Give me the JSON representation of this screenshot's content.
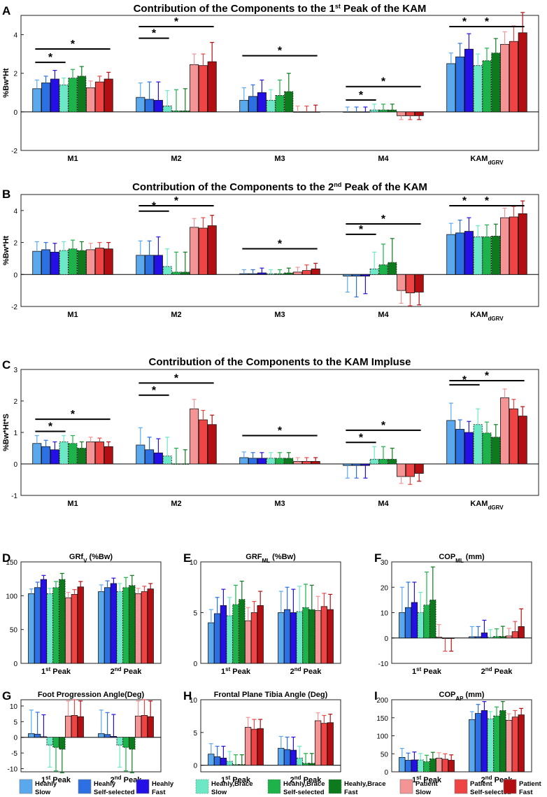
{
  "groups": [
    {
      "name": "Heahly Slow",
      "line1": "Heahly",
      "line2": "Slow",
      "color": "#5aa9ef",
      "dashed": false
    },
    {
      "name": "Heahly Self-selected",
      "line1": "Heahly",
      "line2": "Self-selected",
      "color": "#2c70e3",
      "dashed": false
    },
    {
      "name": "Heahly Fast",
      "line1": "Heahly",
      "line2": "Fast",
      "color": "#2410e6",
      "dashed": false
    },
    {
      "name": "Heahly,Brace Slow",
      "line1": "Heahly,Brace",
      "line2": "Slow",
      "color": "#6ce8c6",
      "dashed": true
    },
    {
      "name": "Heahly,Brace Self-selected",
      "line1": "Heahly,Brace",
      "line2": "Self-selected",
      "color": "#1db34a",
      "dashed": true
    },
    {
      "name": "Heahly,Brace Fast",
      "line1": "Heahly,Brace",
      "line2": "Fast",
      "color": "#0e7a1e",
      "dashed": true
    },
    {
      "name": "Patient Slow",
      "line1": "Patient",
      "line2": "Slow",
      "color": "#f49494",
      "dashed": false
    },
    {
      "name": "Patient Self-selected",
      "line1": "Patient",
      "line2": "Self-selected",
      "color": "#ee4444",
      "dashed": false
    },
    {
      "name": "Patient Fast",
      "line1": "Patient",
      "line2": "Fast",
      "color": "#b30f12",
      "dashed": false
    }
  ],
  "chart_data": [
    {
      "label": "A",
      "type": "bar",
      "title_pre": "Contribution of the Components to the 1",
      "title_sup": "st",
      "title_post": " Peak of the KAM",
      "ylabel": "%Bw*Ht",
      "ylim": [
        -2,
        5
      ],
      "yticks": [
        -2,
        0,
        2,
        4
      ],
      "categories": [
        "M1",
        "M2",
        "M3",
        "M4",
        "KAM"
      ],
      "cat_sub": [
        "",
        "",
        "",
        "",
        "dGRV"
      ],
      "values": [
        [
          1.2,
          1.5,
          1.7,
          1.4,
          1.75,
          1.85,
          1.25,
          1.55,
          1.7
        ],
        [
          0.75,
          0.65,
          0.6,
          0.3,
          0.05,
          0.05,
          2.45,
          2.4,
          2.6
        ],
        [
          0.6,
          0.8,
          1.0,
          0.6,
          0.85,
          1.05,
          0.0,
          0.0,
          0.0
        ],
        [
          0.0,
          0.0,
          0.0,
          0.1,
          0.1,
          0.1,
          -0.2,
          -0.2,
          -0.2
        ],
        [
          2.5,
          2.85,
          3.25,
          2.4,
          2.65,
          3.05,
          3.5,
          3.65,
          4.1
        ]
      ],
      "errors": [
        [
          0.45,
          0.35,
          0.45,
          0.35,
          0.45,
          0.5,
          0.35,
          0.3,
          0.35
        ],
        [
          0.75,
          0.9,
          0.95,
          0.8,
          1.1,
          1.15,
          0.55,
          0.6,
          1.0
        ],
        [
          0.65,
          0.6,
          0.65,
          0.55,
          0.8,
          0.95,
          0.3,
          0.3,
          0.35
        ],
        [
          0.25,
          0.25,
          0.25,
          0.3,
          0.3,
          0.3,
          0.2,
          0.2,
          0.2
        ],
        [
          0.55,
          0.7,
          0.8,
          0.6,
          0.65,
          0.75,
          0.65,
          0.8,
          1.05
        ]
      ],
      "sig": [
        {
          "cat": 0,
          "from": 0,
          "to": 3,
          "level": 1
        },
        {
          "cat": 0,
          "from": 0,
          "to": 8,
          "level": 2
        },
        {
          "cat": 1,
          "from": 0,
          "to": 3,
          "level": 1
        },
        {
          "cat": 1,
          "from": 0,
          "to": 8,
          "level": 2
        },
        {
          "cat": 2,
          "from": 0,
          "to": 8,
          "level": 2
        },
        {
          "cat": 3,
          "from": 0,
          "to": 3,
          "level": 1
        },
        {
          "cat": 3,
          "from": 0,
          "to": 8,
          "level": 2
        },
        {
          "cat": 4,
          "from": 0,
          "to": 3,
          "level": 1
        },
        {
          "cat": 4,
          "from": 0,
          "to": 8,
          "level": 2
        }
      ],
      "star": "*"
    },
    {
      "label": "B",
      "type": "bar",
      "title_pre": "Contribution of the Components to the 2",
      "title_sup": "nd",
      "title_post": " Peak of the KAM",
      "ylabel": "%Bw*Ht",
      "ylim": [
        -2,
        5
      ],
      "yticks": [
        -2,
        0,
        2,
        4
      ],
      "categories": [
        "M1",
        "M2",
        "M3",
        "M4",
        "KAM"
      ],
      "cat_sub": [
        "",
        "",
        "",
        "",
        "dGRV"
      ],
      "values": [
        [
          1.45,
          1.55,
          1.4,
          1.5,
          1.6,
          1.5,
          1.55,
          1.65,
          1.6
        ],
        [
          1.2,
          1.2,
          1.2,
          0.5,
          0.15,
          0.15,
          2.95,
          2.9,
          3.05
        ],
        [
          0.05,
          0.05,
          0.1,
          0.05,
          0.05,
          0.1,
          0.15,
          0.25,
          0.35
        ],
        [
          -0.1,
          -0.1,
          -0.1,
          0.35,
          0.6,
          0.75,
          -1.0,
          -1.15,
          -1.1
        ],
        [
          2.5,
          2.6,
          2.7,
          2.35,
          2.35,
          2.4,
          3.55,
          3.6,
          3.8
        ]
      ],
      "errors": [
        [
          0.6,
          0.45,
          0.55,
          0.55,
          0.55,
          0.55,
          0.4,
          0.35,
          0.4
        ],
        [
          0.9,
          0.9,
          1.15,
          1.1,
          1.25,
          1.25,
          0.55,
          0.65,
          0.65
        ],
        [
          0.25,
          0.25,
          0.3,
          0.25,
          0.25,
          0.3,
          0.3,
          0.35,
          0.35
        ],
        [
          1.0,
          1.3,
          1.1,
          1.05,
          1.3,
          1.5,
          0.8,
          0.8,
          0.8
        ],
        [
          0.7,
          0.8,
          0.85,
          0.7,
          0.75,
          0.75,
          0.6,
          0.65,
          0.8
        ]
      ],
      "sig": [
        {
          "cat": 1,
          "from": 0,
          "to": 3,
          "level": 1
        },
        {
          "cat": 1,
          "from": 0,
          "to": 8,
          "level": 2
        },
        {
          "cat": 2,
          "from": 0,
          "to": 8,
          "level": 2
        },
        {
          "cat": 3,
          "from": 0,
          "to": 3,
          "level": 1
        },
        {
          "cat": 3,
          "from": 0,
          "to": 8,
          "level": 2
        },
        {
          "cat": 4,
          "from": 0,
          "to": 3,
          "level": 1
        },
        {
          "cat": 4,
          "from": 0,
          "to": 8,
          "level": 2
        }
      ],
      "star": "*"
    },
    {
      "label": "C",
      "type": "bar",
      "title_pre": "Contribution of the Components to the KAM Impluse",
      "title_sup": "",
      "title_post": "",
      "ylabel": "%Bw*Ht*S",
      "ylim": [
        -1,
        3
      ],
      "yticks": [
        -1,
        0,
        1,
        2,
        3
      ],
      "categories": [
        "M1",
        "M2",
        "M3",
        "M4",
        "KAM"
      ],
      "cat_sub": [
        "",
        "",
        "",
        "",
        "dGRV"
      ],
      "values": [
        [
          0.65,
          0.55,
          0.45,
          0.7,
          0.65,
          0.5,
          0.7,
          0.7,
          0.55
        ],
        [
          0.6,
          0.45,
          0.35,
          0.25,
          0.0,
          0.0,
          1.75,
          1.4,
          1.25
        ],
        [
          0.2,
          0.18,
          0.18,
          0.18,
          0.18,
          0.18,
          0.08,
          0.08,
          0.08
        ],
        [
          -0.05,
          -0.05,
          -0.05,
          0.15,
          0.15,
          0.15,
          -0.4,
          -0.4,
          -0.3
        ],
        [
          1.38,
          1.1,
          1.0,
          1.25,
          0.98,
          0.85,
          2.1,
          1.75,
          1.52
        ]
      ],
      "errors": [
        [
          0.25,
          0.2,
          0.25,
          0.2,
          0.25,
          0.2,
          0.15,
          0.12,
          0.15
        ],
        [
          0.55,
          0.4,
          0.45,
          0.6,
          0.5,
          0.45,
          0.3,
          0.3,
          0.3
        ],
        [
          0.18,
          0.18,
          0.18,
          0.18,
          0.18,
          0.18,
          0.12,
          0.12,
          0.12
        ],
        [
          0.4,
          0.4,
          0.4,
          0.4,
          0.4,
          0.35,
          0.22,
          0.25,
          0.25
        ],
        [
          0.55,
          0.3,
          0.35,
          0.5,
          0.35,
          0.4,
          0.28,
          0.3,
          0.3
        ]
      ],
      "sig": [
        {
          "cat": 0,
          "from": 0,
          "to": 3,
          "level": 1
        },
        {
          "cat": 0,
          "from": 0,
          "to": 8,
          "level": 2
        },
        {
          "cat": 1,
          "from": 0,
          "to": 3,
          "level": 1
        },
        {
          "cat": 1,
          "from": 0,
          "to": 8,
          "level": 2
        },
        {
          "cat": 2,
          "from": 0,
          "to": 8,
          "level": 2
        },
        {
          "cat": 3,
          "from": 0,
          "to": 3,
          "level": 1
        },
        {
          "cat": 3,
          "from": 0,
          "to": 8,
          "level": 2
        },
        {
          "cat": 4,
          "from": 0,
          "to": 3,
          "level": 1
        },
        {
          "cat": 4,
          "from": 0,
          "to": 8,
          "level": 2
        }
      ],
      "star": "*"
    },
    {
      "label": "D",
      "type": "bar",
      "title_pre": "GRf",
      "title_sub": "V",
      "title_post": " (%Bw)",
      "ylim": [
        0,
        150
      ],
      "yticks": [
        0,
        50,
        100,
        150
      ],
      "categories": [
        "1st Peak",
        "2nd Peak"
      ],
      "cat_main": [
        "1",
        "2"
      ],
      "cat_sup": [
        "st",
        "nd"
      ],
      "cat_post": [
        " Peak",
        " Peak"
      ],
      "values": [
        [
          103,
          112,
          124,
          103,
          112,
          124,
          97,
          102,
          113
        ],
        [
          106,
          112,
          118,
          106,
          112,
          115,
          103,
          106,
          110
        ]
      ],
      "errors": [
        [
          7,
          8,
          6,
          8,
          9,
          9,
          8,
          7,
          8
        ],
        [
          10,
          10,
          8,
          12,
          15,
          15,
          8,
          8,
          8
        ]
      ],
      "sig": []
    },
    {
      "label": "E",
      "type": "bar",
      "title_pre": "GRF",
      "title_sub": "ML",
      "title_post": " (%Bw)",
      "ylim": [
        0,
        10
      ],
      "yticks": [
        0,
        5,
        10
      ],
      "categories": [
        "1st Peak",
        "2nd Peak"
      ],
      "cat_main": [
        "1",
        "2"
      ],
      "cat_sup": [
        "st",
        "nd"
      ],
      "cat_post": [
        " Peak",
        " Peak"
      ],
      "values": [
        [
          4.0,
          4.9,
          5.7,
          4.7,
          5.8,
          6.3,
          4.2,
          5.0,
          5.7
        ],
        [
          5.0,
          5.3,
          5.0,
          5.1,
          5.5,
          5.3,
          5.2,
          5.6,
          5.3
        ]
      ],
      "errors": [
        [
          1.3,
          1.6,
          1.6,
          1.8,
          1.9,
          1.8,
          1.3,
          1.1,
          1.4
        ],
        [
          2.1,
          2.2,
          2.3,
          2.5,
          2.3,
          2.4,
          1.4,
          1.3,
          1.5
        ]
      ],
      "sig": []
    },
    {
      "label": "F",
      "type": "bar",
      "title_pre": "COP",
      "title_sub": "ML",
      "title_post": " (mm)",
      "ylim": [
        -10,
        30
      ],
      "yticks": [
        -10,
        0,
        10,
        20,
        30
      ],
      "categories": [
        "1st Peak",
        "2nd Peak"
      ],
      "cat_main": [
        "1",
        "2"
      ],
      "cat_sup": [
        "st",
        "nd"
      ],
      "cat_post": [
        " Peak",
        " Peak"
      ],
      "values": [
        [
          10,
          12,
          14,
          10,
          13,
          15,
          0.3,
          -0.2,
          -0.2
        ],
        [
          0.5,
          0.5,
          2,
          0.3,
          0.6,
          0.6,
          0.8,
          2.5,
          4.5
        ]
      ],
      "errors": [
        [
          10,
          10,
          8,
          8,
          13,
          13,
          5,
          5,
          5
        ],
        [
          4,
          4,
          5,
          3,
          3,
          4,
          3,
          4,
          7
        ]
      ],
      "sig": []
    },
    {
      "label": "G",
      "type": "bar",
      "title_pre": "Foot Progression Angle(Deg)",
      "title_sub": "",
      "title_post": "",
      "ylim": [
        -11,
        12
      ],
      "yticks": [
        -10,
        -5,
        0,
        5,
        10
      ],
      "categories": [
        "1st Peak",
        "2nd Peak"
      ],
      "cat_main": [
        "1",
        "2"
      ],
      "cat_sup": [
        "st",
        "nd"
      ],
      "cat_post": [
        " Peak",
        " Peak"
      ],
      "values": [
        [
          1.2,
          1.0,
          0.2,
          -2.5,
          -3.2,
          -3.8,
          6.8,
          7.0,
          6.6
        ],
        [
          1.2,
          0.9,
          0.3,
          -2.5,
          -3.2,
          -3.8,
          6.8,
          7.0,
          6.6
        ]
      ],
      "errors": [
        [
          7.5,
          7.0,
          7.0,
          7.0,
          7.5,
          7.5,
          4.8,
          5.0,
          5.0
        ],
        [
          7.5,
          7.0,
          7.0,
          7.0,
          7.5,
          7.5,
          4.8,
          5.0,
          5.0
        ]
      ],
      "sig": []
    },
    {
      "label": "H",
      "type": "bar",
      "title_pre": "Frontal Plane Tibia Angle (Deg)",
      "title_sub": "",
      "title_post": "",
      "ylim": [
        -1,
        10
      ],
      "yticks": [
        0,
        5,
        10
      ],
      "categories": [
        "1st Peak",
        "2nd Peak"
      ],
      "cat_main": [
        "1",
        "2"
      ],
      "cat_sup": [
        "st",
        "nd"
      ],
      "cat_post": [
        " Peak",
        " Peak"
      ],
      "values": [
        [
          1.7,
          1.3,
          1.1,
          0.6,
          0.1,
          0.1,
          5.8,
          5.5,
          5.6
        ],
        [
          2.6,
          2.4,
          2.3,
          1.1,
          0.3,
          0.3,
          6.8,
          6.4,
          6.5
        ]
      ],
      "errors": [
        [
          1.6,
          1.6,
          1.8,
          1.5,
          1.5,
          1.5,
          1.5,
          1.5,
          1.4
        ],
        [
          1.8,
          1.9,
          2.0,
          1.8,
          1.5,
          1.5,
          1.2,
          1.2,
          1.3
        ]
      ],
      "sig": []
    },
    {
      "label": "I",
      "type": "bar",
      "title_pre": "COP",
      "title_sub": "AP",
      "title_post": " (mm)",
      "ylim": [
        0,
        200
      ],
      "yticks": [
        0,
        50,
        100,
        150,
        200
      ],
      "categories": [
        "1st Peak",
        "2nd Peak"
      ],
      "cat_main": [
        "1",
        "2"
      ],
      "cat_sup": [
        "st",
        "nd"
      ],
      "cat_post": [
        " Peak",
        " Peak"
      ],
      "values": [
        [
          40,
          32,
          33,
          33,
          28,
          36,
          38,
          35,
          32
        ],
        [
          145,
          162,
          170,
          147,
          155,
          170,
          143,
          152,
          158
        ]
      ],
      "errors": [
        [
          25,
          20,
          22,
          18,
          18,
          18,
          15,
          15,
          15
        ],
        [
          22,
          25,
          25,
          20,
          25,
          25,
          18,
          18,
          18
        ]
      ],
      "sig": []
    }
  ]
}
